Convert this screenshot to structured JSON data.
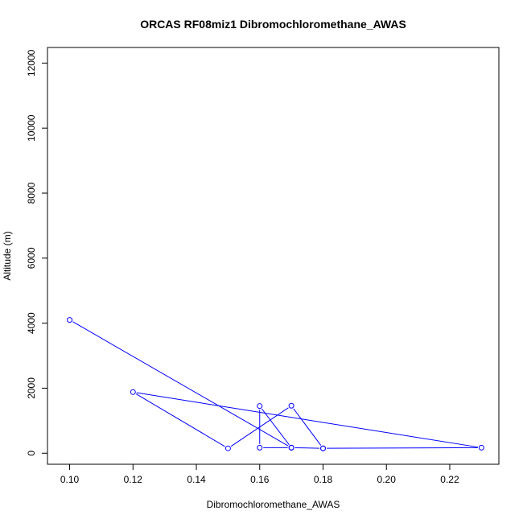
{
  "chart_data": {
    "type": "line",
    "title": "ORCAS RF08miz1 Dibromochloromethane_AWAS",
    "xlabel": "Dibromochloromethane_AWAS",
    "ylabel": "Altitude (m)",
    "xlim": [
      0.093,
      0.2355
    ],
    "ylim": [
      -340,
      12480
    ],
    "x_ticks": [
      0.1,
      0.12,
      0.14,
      0.16,
      0.18,
      0.2,
      0.22
    ],
    "x_tick_labels": [
      "0.10",
      "0.12",
      "0.14",
      "0.16",
      "0.18",
      "0.20",
      "0.22"
    ],
    "y_ticks": [
      0,
      2000,
      4000,
      6000,
      8000,
      10000,
      12000
    ],
    "y_tick_labels": [
      "0",
      "2000",
      "4000",
      "6000",
      "8000",
      "10000",
      "12000"
    ],
    "line_color": "#0000ff",
    "marker": "open-circle",
    "grid": false,
    "series": [
      {
        "points": [
          {
            "x": 0.1,
            "y": 4100
          },
          {
            "x": 0.17,
            "y": 170
          },
          {
            "x": 0.16,
            "y": 1450
          },
          {
            "x": 0.16,
            "y": 170
          },
          {
            "x": 0.17,
            "y": 170
          },
          {
            "x": 0.18,
            "y": 150
          },
          {
            "x": 0.17,
            "y": 1460
          },
          {
            "x": 0.15,
            "y": 150
          },
          {
            "x": 0.12,
            "y": 1880
          },
          {
            "x": 0.23,
            "y": 170
          },
          {
            "x": 0.18,
            "y": 150
          }
        ]
      }
    ]
  }
}
